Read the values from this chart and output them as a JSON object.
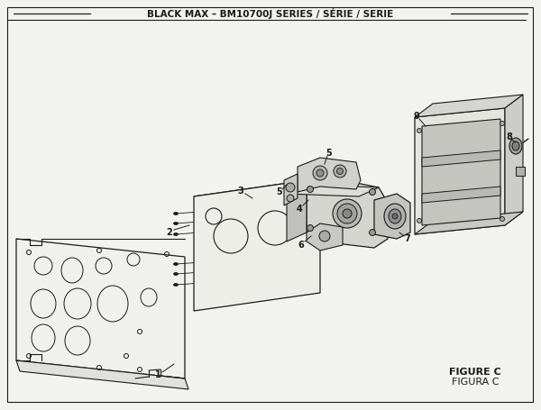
{
  "title": "BLACK MAX – BM10700J SERIES / SÉRIE / SERIE",
  "figure_label": "FIGURE C",
  "figure_label2": "FIGURA C",
  "bg_color": "#f2f2ee",
  "line_color": "#1a1a1a",
  "fill_light": "#e8e8e4",
  "fill_mid": "#d8d8d4",
  "fill_dark": "#c0c0bc"
}
